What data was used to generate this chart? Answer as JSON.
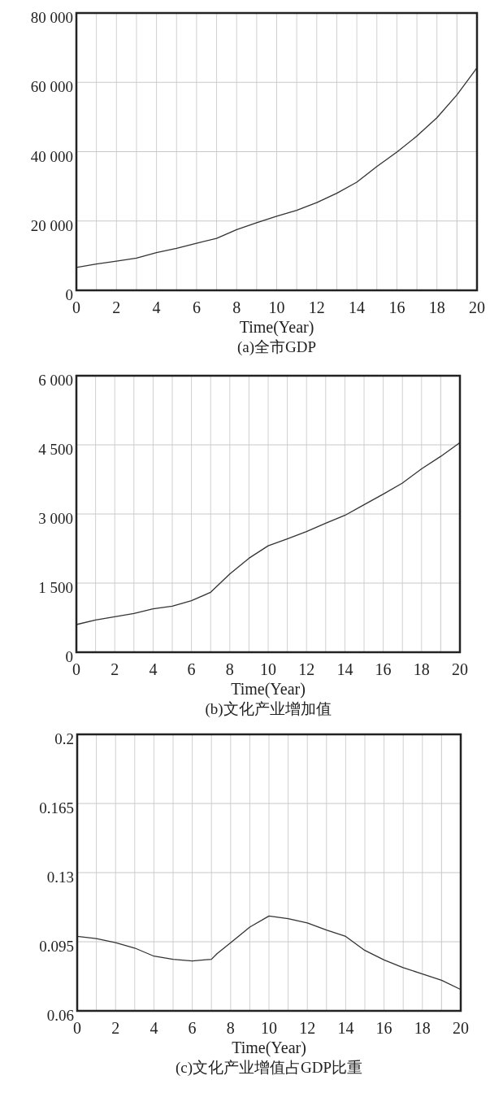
{
  "chart_data": [
    {
      "type": "line",
      "title": "(a)全市GDP",
      "xlabel": "Time(Year)",
      "x": [
        0,
        1,
        2,
        3,
        4,
        5,
        6,
        7,
        8,
        9,
        10,
        11,
        12,
        13,
        14,
        15,
        16,
        17,
        18,
        19,
        20
      ],
      "values": [
        6600,
        7600,
        8400,
        9300,
        10900,
        12100,
        13600,
        15000,
        17500,
        19500,
        21400,
        23100,
        25300,
        28000,
        31200,
        35700,
        39900,
        44500,
        49800,
        56400,
        64200
      ],
      "color": "#333333",
      "xlim": [
        0,
        20
      ],
      "xticks": [
        0,
        2,
        4,
        6,
        8,
        10,
        12,
        14,
        16,
        18,
        20
      ],
      "ylim": [
        0,
        80000
      ],
      "yticks": [
        0,
        {
          "value": 20000,
          "label": "20 000"
        },
        {
          "value": 40000,
          "label": "40 000"
        },
        {
          "value": 60000,
          "label": "60 000"
        },
        {
          "value": 80000,
          "label": "80 000"
        }
      ],
      "grid": true
    },
    {
      "type": "line",
      "title": "(b)文化产业增加值",
      "xlabel": "Time(Year)",
      "x": [
        0,
        1,
        2,
        3,
        4,
        5,
        6,
        7,
        7.5,
        8,
        9,
        10,
        11,
        12,
        13,
        14,
        15,
        16,
        17,
        18,
        19,
        20
      ],
      "values": [
        600,
        700,
        770,
        840,
        940,
        1000,
        1120,
        1300,
        1500,
        1700,
        2040,
        2310,
        2460,
        2620,
        2800,
        2970,
        3200,
        3430,
        3670,
        3980,
        4250,
        4550
      ],
      "color": "#333333",
      "xlim": [
        0,
        20
      ],
      "xticks": [
        0,
        2,
        4,
        6,
        8,
        10,
        12,
        14,
        16,
        18,
        20
      ],
      "ylim": [
        0,
        6000
      ],
      "yticks": [
        0,
        {
          "value": 1500,
          "label": "1 500"
        },
        {
          "value": 3000,
          "label": "3 000"
        },
        {
          "value": 4500,
          "label": "4 500"
        },
        {
          "value": 6000,
          "label": "6 000"
        }
      ],
      "grid": true
    },
    {
      "type": "line",
      "title": "(c)文化产业增值占GDP比重",
      "xlabel": "Time(Year)",
      "x": [
        0,
        1,
        2,
        3,
        4,
        5,
        6,
        7,
        7.3,
        8,
        9,
        10,
        11,
        12,
        13,
        14,
        15,
        16,
        17,
        18,
        19,
        20
      ],
      "values": [
        0.0977,
        0.0966,
        0.0945,
        0.0918,
        0.0877,
        0.0861,
        0.0853,
        0.0861,
        0.089,
        0.0945,
        0.1024,
        0.108,
        0.1067,
        0.1045,
        0.1009,
        0.0977,
        0.0906,
        0.0858,
        0.0819,
        0.0787,
        0.0755,
        0.0708
      ],
      "color": "#333333",
      "xlim": [
        0,
        20
      ],
      "xticks": [
        0,
        2,
        4,
        6,
        8,
        10,
        12,
        14,
        16,
        18,
        20
      ],
      "ylim": [
        0.06,
        0.2
      ],
      "yticks": [
        0.06,
        0.095,
        0.13,
        0.165,
        0.2
      ],
      "grid": true
    }
  ]
}
